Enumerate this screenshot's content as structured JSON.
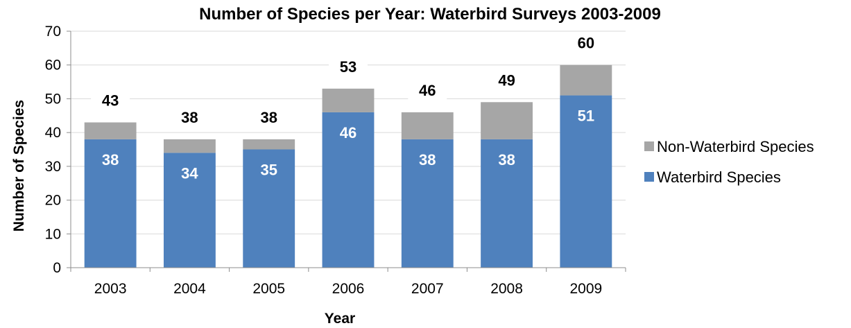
{
  "chart_data": {
    "type": "bar",
    "stacked": true,
    "title": "Number of Species per Year: Waterbird Surveys 2003-2009",
    "xlabel": "Year",
    "ylabel": "Number of Species",
    "ylim": [
      0,
      70
    ],
    "ytick_step": 10,
    "grid": true,
    "legend_position": "right",
    "categories": [
      "2003",
      "2004",
      "2005",
      "2006",
      "2007",
      "2008",
      "2009"
    ],
    "totals": [
      43,
      38,
      38,
      53,
      46,
      49,
      60
    ],
    "series": [
      {
        "name": "Waterbird Species",
        "values": [
          38,
          34,
          35,
          46,
          38,
          38,
          51
        ],
        "color": "#4f81bd"
      },
      {
        "name": "Non-Waterbird Species",
        "values": [
          5,
          4,
          3,
          7,
          8,
          11,
          9
        ],
        "color": "#a6a6a6"
      }
    ],
    "legend_order": [
      "Non-Waterbird Species",
      "Waterbird Species"
    ]
  }
}
